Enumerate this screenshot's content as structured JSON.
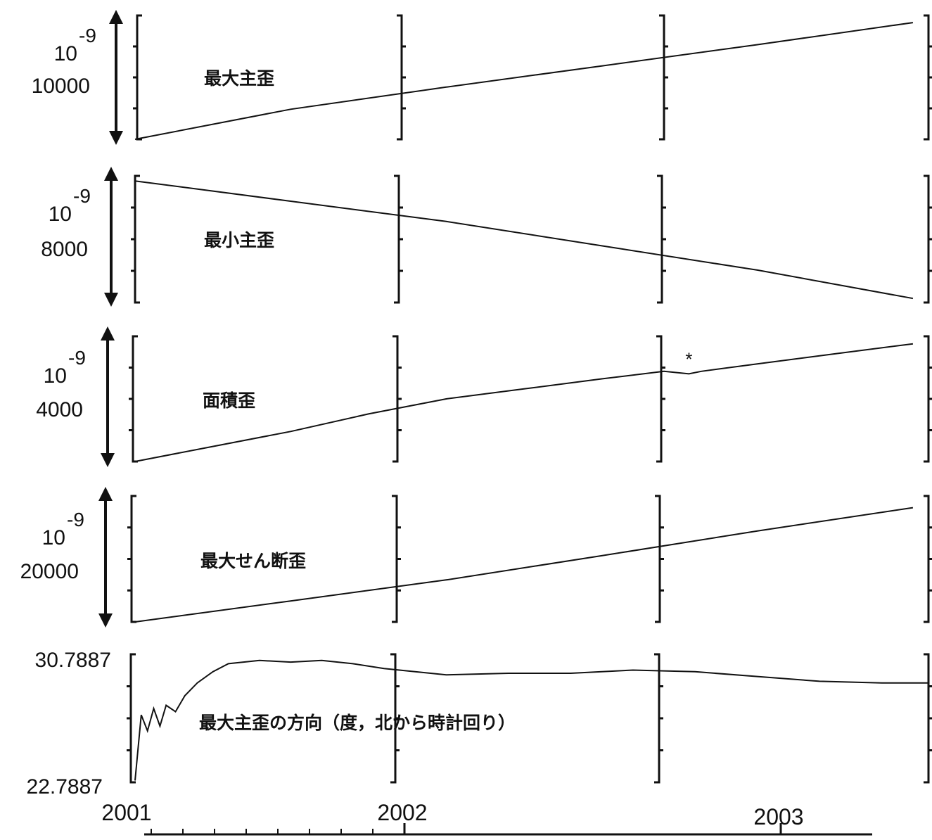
{
  "chart_data": [
    {
      "type": "line",
      "title": "最大主歪",
      "scale_power": "10",
      "scale_exp": "-9",
      "scale_bar_value": "10000",
      "x": [
        2001.0,
        2001.5,
        2002.0,
        2002.5,
        2003.0,
        2003.5
      ],
      "series": [
        {
          "values": [
            0,
            3400,
            5900,
            8300,
            10700,
            13200
          ]
        }
      ],
      "ylim": [
        0,
        14000
      ]
    },
    {
      "type": "line",
      "title": "最小主歪",
      "scale_power": "10",
      "scale_exp": "-9",
      "scale_bar_value": "8000",
      "x": [
        2001.0,
        2001.5,
        2002.0,
        2002.5,
        2003.0,
        2003.5
      ],
      "series": [
        {
          "values": [
            0,
            -2000,
            -4000,
            -6400,
            -8800,
            -11600
          ]
        }
      ],
      "ylim": [
        -12000,
        500
      ]
    },
    {
      "type": "line",
      "title": "面積歪",
      "scale_power": "10",
      "scale_exp": "-9",
      "scale_bar_value": "4000",
      "annotation": "*",
      "x": [
        2001.0,
        2001.25,
        2001.5,
        2001.75,
        2002.0,
        2002.25,
        2002.5,
        2002.7,
        2002.78,
        2002.82,
        2003.0,
        2003.25,
        2003.5
      ],
      "series": [
        {
          "values": [
            0,
            600,
            1200,
            1900,
            2500,
            2900,
            3300,
            3600,
            3500,
            3600,
            3900,
            4300,
            4700
          ]
        }
      ],
      "ylim": [
        0,
        5000
      ]
    },
    {
      "type": "line",
      "title": "最大せん断歪",
      "scale_power": "10",
      "scale_exp": "-9",
      "scale_bar_value": "20000",
      "x": [
        2001.0,
        2001.5,
        2002.0,
        2002.5,
        2003.0,
        2003.5
      ],
      "series": [
        {
          "values": [
            0,
            4500,
            9000,
            14200,
            19500,
            24500
          ]
        }
      ],
      "ylim": [
        0,
        27000
      ]
    },
    {
      "type": "line",
      "title": "最大主歪の方向（度，北から時計回り）",
      "ytick_top": "30.7887",
      "ytick_bottom": "22.7887",
      "x": [
        2001.0,
        2001.02,
        2001.04,
        2001.06,
        2001.08,
        2001.1,
        2001.13,
        2001.16,
        2001.2,
        2001.25,
        2001.3,
        2001.4,
        2001.5,
        2001.6,
        2001.7,
        2001.8,
        2001.9,
        2002.0,
        2002.2,
        2002.4,
        2002.6,
        2002.8,
        2003.0,
        2003.2,
        2003.4,
        2003.55
      ],
      "series": [
        {
          "values": [
            22.9,
            27.0,
            26.0,
            27.4,
            26.3,
            27.6,
            27.2,
            28.2,
            29.0,
            29.7,
            30.2,
            30.4,
            30.3,
            30.4,
            30.2,
            29.9,
            29.7,
            29.5,
            29.6,
            29.6,
            29.8,
            29.7,
            29.4,
            29.1,
            29.0,
            29.0
          ]
        }
      ],
      "ylim": [
        22.7887,
        30.7887
      ]
    }
  ],
  "x_axis": {
    "tick_labels": [
      "2001",
      "2002",
      "2003"
    ]
  }
}
